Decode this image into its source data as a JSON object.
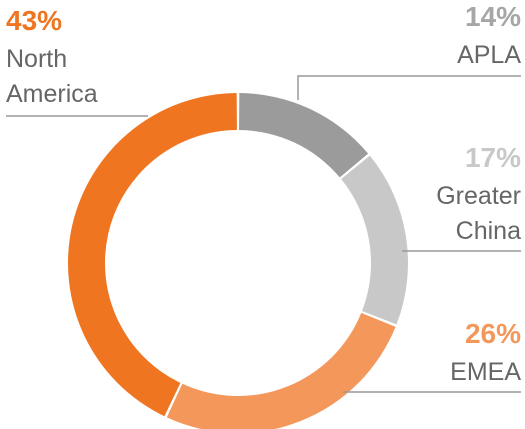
{
  "chart_data": {
    "type": "pie",
    "variant": "donut",
    "title": "",
    "unit": "%",
    "slices": [
      {
        "label_lines": [
          "APLA"
        ],
        "value": 14,
        "value_label": "14%",
        "color": "#9b9b9b",
        "label_color": "#a6a6a6"
      },
      {
        "label_lines": [
          "Greater",
          "China"
        ],
        "value": 17,
        "value_label": "17%",
        "color": "#c8c8c8",
        "label_color": "#c8c8c8"
      },
      {
        "label_lines": [
          "EMEA"
        ],
        "value": 26,
        "value_label": "26%",
        "color": "#f4975a",
        "label_color": "#f4975a"
      },
      {
        "label_lines": [
          "North",
          "America"
        ],
        "value": 43,
        "value_label": "43%",
        "color": "#ef7521",
        "label_color": "#ef7521"
      }
    ],
    "start_angle_deg": 0,
    "direction": "clockwise",
    "legend": "none",
    "leader_line_color": "#999999"
  }
}
